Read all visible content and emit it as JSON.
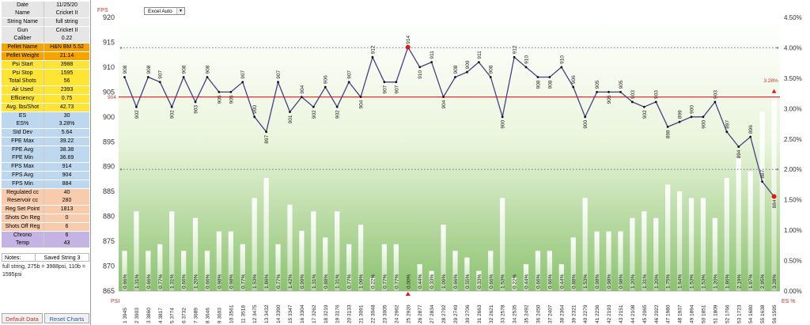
{
  "stats": [
    {
      "label": "Date",
      "value": "11/25/20",
      "bg": "#e6e6e6"
    },
    {
      "label": "Name",
      "value": "Cricket II",
      "bg": "#e6e6e6"
    },
    {
      "label": "String Name",
      "value": "full string",
      "bg": "#e6e6e6"
    },
    {
      "label": "Gun",
      "value": "Cricket II",
      "bg": "#e6e6e6"
    },
    {
      "label": "Caliber",
      "value": "0.22",
      "bg": "#e6e6e6"
    },
    {
      "label": "Pellet Name",
      "value": "H&N BM 5.52",
      "bg": "#f5a300"
    },
    {
      "label": "Pellet Weight",
      "value": "21.14",
      "bg": "#f5a300"
    },
    {
      "label": "Psi Start",
      "value": "3988",
      "bg": "#ffe533"
    },
    {
      "label": "Psi Stop",
      "value": "1595",
      "bg": "#ffe533"
    },
    {
      "label": "Total Shots",
      "value": "56",
      "bg": "#ffe533"
    },
    {
      "label": "Air Used",
      "value": "2393",
      "bg": "#ffe533"
    },
    {
      "label": "Efficiency",
      "value": "0.75",
      "bg": "#ffe533"
    },
    {
      "label": "Avg. lbs/Shot",
      "value": "42.73",
      "bg": "#ffe533"
    },
    {
      "label": "ES",
      "value": "30",
      "bg": "#bdd7ee"
    },
    {
      "label": "ES%",
      "value": "3.28%",
      "bg": "#bdd7ee"
    },
    {
      "label": "Std Dev",
      "value": "5.64",
      "bg": "#bdd7ee"
    },
    {
      "label": "FPE Max",
      "value": "39.22",
      "bg": "#bdd7ee"
    },
    {
      "label": "FPE Avg",
      "value": "38.38",
      "bg": "#bdd7ee"
    },
    {
      "label": "FPE Min",
      "value": "36.69",
      "bg": "#bdd7ee"
    },
    {
      "label": "FPS Max",
      "value": "914",
      "bg": "#bdd7ee"
    },
    {
      "label": "FPS Avg",
      "value": "904",
      "bg": "#bdd7ee"
    },
    {
      "label": "FPS Min",
      "value": "884",
      "bg": "#bdd7ee"
    },
    {
      "label": "Regulated cc",
      "value": "40",
      "bg": "#f8cbad"
    },
    {
      "label": "Reservoir cc",
      "value": "280",
      "bg": "#f8cbad"
    },
    {
      "label": "Reg Set Point",
      "value": "1813",
      "bg": "#f8cbad"
    },
    {
      "label": "Shots On Reg",
      "value": "0",
      "bg": "#f8cbad"
    },
    {
      "label": "Shots Off Reg",
      "value": "6",
      "bg": "#f8cbad"
    },
    {
      "label": "Chrono",
      "value": "6",
      "bg": "#c5b4e3"
    },
    {
      "label": "Temp",
      "value": "43",
      "bg": "#c5b4e3"
    }
  ],
  "notes": {
    "label": "Notes:",
    "value": "Saved String 3",
    "text": "full string, 275b = 3988psi, 110b = 1595psi"
  },
  "buttons": {
    "default": "Default Data",
    "reset": "Reset Charts"
  },
  "dropdown": {
    "value": "Excel Auto"
  },
  "colors": {
    "line": "#4b3d86",
    "avg_line": "#e03030",
    "dotted": "#8a8aaa",
    "bar": "#ffffff",
    "label": "#c0392b"
  },
  "chart_data": {
    "type": "line",
    "left_axis_title": "FPS",
    "right_axis_title": "",
    "left_ylim": [
      865,
      920
    ],
    "left_ticks": [
      "865",
      "870",
      "875",
      "880",
      "885",
      "890",
      "895",
      "900",
      "905",
      "910",
      "915",
      "920"
    ],
    "right_ylim": [
      0,
      4.5
    ],
    "right_ticks": [
      "0.00%",
      "0.50%",
      "1.00%",
      "1.50%",
      "2.00%",
      "2.50%",
      "3.00%",
      "3.50%",
      "4.00%",
      "4.50%"
    ],
    "bottom_left_label": "PSI",
    "bottom_right_label": "ES %",
    "avg_line_value": 904,
    "avg_line_label": "904",
    "es_marker_label": "3.28%",
    "dotted_levels_right": [
      2.0,
      4.0
    ],
    "shots": [
      "1",
      "2",
      "3",
      "4",
      "5",
      "6",
      "7",
      "8",
      "9",
      "10",
      "11",
      "12",
      "13",
      "14",
      "15",
      "16",
      "17",
      "18",
      "19",
      "20",
      "21",
      "22",
      "23",
      "24",
      "25",
      "26",
      "27",
      "28",
      "29",
      "30",
      "31",
      "32",
      "33",
      "34",
      "35",
      "36",
      "37",
      "38",
      "39",
      "40",
      "41",
      "42",
      "43",
      "44",
      "45",
      "46",
      "47",
      "48",
      "49",
      "50",
      "51",
      "52",
      "53",
      "54",
      "55",
      "56"
    ],
    "psi": [
      "3945",
      "3903",
      "3860",
      "3817",
      "3774",
      "3732",
      "3689",
      "3646",
      "3603",
      "3561",
      "3518",
      "3475",
      "3432",
      "3390",
      "3347",
      "3304",
      "3262",
      "3219",
      "3176",
      "3133",
      "3091",
      "3048",
      "3005",
      "2962",
      "2920",
      "2877",
      "2834",
      "2792",
      "2749",
      "2706",
      "2663",
      "2621",
      "2578",
      "2535",
      "2492",
      "2450",
      "2407",
      "2364",
      "2321",
      "2279",
      "2236",
      "2193",
      "2151",
      "2108",
      "2065",
      "2022",
      "1980",
      "1937",
      "1894",
      "1851",
      "1809",
      "1766",
      "1723",
      "1680",
      "1638",
      "1595"
    ],
    "fps": [
      908,
      902,
      908,
      907,
      902,
      908,
      903,
      908,
      905,
      905,
      907,
      900,
      897,
      907,
      901,
      904,
      902,
      906,
      902,
      907,
      904,
      912,
      907,
      907,
      914,
      910,
      911,
      904,
      908,
      909,
      911,
      908,
      900,
      912,
      910,
      908,
      908,
      910,
      906,
      900,
      905,
      905,
      905,
      903,
      902,
      903,
      898,
      899,
      900,
      900,
      903,
      897,
      894,
      896,
      887,
      884
    ],
    "es_percent": [
      "0.66%",
      "1.31%",
      "0.66%",
      "0.77%",
      "1.31%",
      "0.66%",
      "1.20%",
      "0.66%",
      "0.98%",
      "0.98%",
      "0.77%",
      "1.53%",
      "1.86%",
      "0.77%",
      "1.42%",
      "0.99%",
      "1.31%",
      "0.88%",
      "1.31%",
      "0.77%",
      "1.09%",
      "0.22%",
      "0.77%",
      "0.77%",
      "0.00%",
      "0.44%",
      "0.33%",
      "1.09%",
      "0.66%",
      "0.55%",
      "0.33%",
      "0.66%",
      "1.53%",
      "0.22%",
      "0.44%",
      "0.66%",
      "0.66%",
      "0.44%",
      "0.88%",
      "1.53%",
      "0.98%",
      "0.98%",
      "0.98%",
      "1.20%",
      "1.31%",
      "1.20%",
      "1.75%",
      "1.64%",
      "1.53%",
      "1.53%",
      "1.20%",
      "1.86%",
      "2.19%",
      "1.97%",
      "2.95%",
      "3.28%"
    ],
    "es_values": [
      0.66,
      1.31,
      0.66,
      0.77,
      1.31,
      0.66,
      1.2,
      0.66,
      0.98,
      0.98,
      0.77,
      1.53,
      1.86,
      0.77,
      1.42,
      0.99,
      1.31,
      0.88,
      1.31,
      0.77,
      1.09,
      0.22,
      0.77,
      0.77,
      0.0,
      0.44,
      0.33,
      1.09,
      0.66,
      0.55,
      0.33,
      0.66,
      1.53,
      0.22,
      0.44,
      0.66,
      0.66,
      0.44,
      0.88,
      1.53,
      0.98,
      0.98,
      0.98,
      1.2,
      1.31,
      1.2,
      1.75,
      1.64,
      1.53,
      1.53,
      1.2,
      1.86,
      2.19,
      1.97,
      2.95,
      3.28
    ],
    "max_point_index": 24,
    "min_point_index": 55
  }
}
